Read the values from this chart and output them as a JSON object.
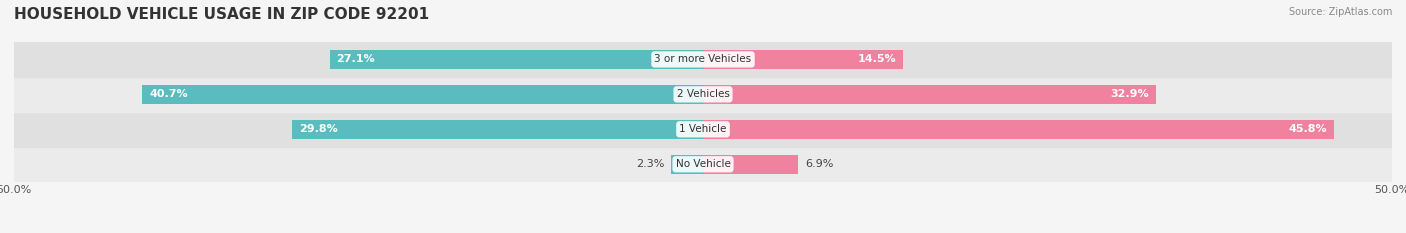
{
  "title": "HOUSEHOLD VEHICLE USAGE IN ZIP CODE 92201",
  "source": "Source: ZipAtlas.com",
  "categories": [
    "No Vehicle",
    "1 Vehicle",
    "2 Vehicles",
    "3 or more Vehicles"
  ],
  "owner_values": [
    2.3,
    29.8,
    40.7,
    27.1
  ],
  "renter_values": [
    6.9,
    45.8,
    32.9,
    14.5
  ],
  "owner_color": "#5bbcbf",
  "renter_color": "#f082a0",
  "xlim": [
    -50,
    50
  ],
  "x_ticks": [
    -50,
    50
  ],
  "x_tick_labels": [
    "50.0%",
    "50.0%"
  ],
  "bar_height": 0.55,
  "bg_color": "#f0f0f0",
  "row_colors": [
    "#e8e8e8",
    "#e8e8e8",
    "#e8e8e8",
    "#e8e8e8"
  ],
  "title_fontsize": 11,
  "label_fontsize": 8,
  "tick_fontsize": 8
}
